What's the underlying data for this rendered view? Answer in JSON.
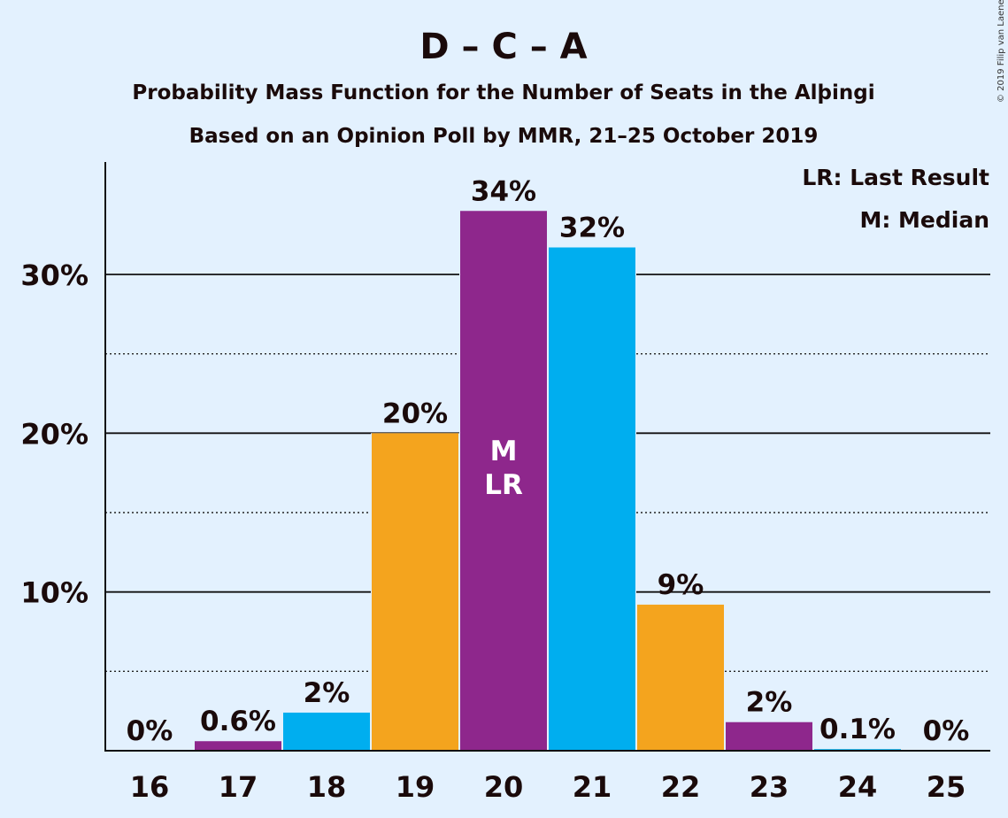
{
  "chart_data": {
    "type": "bar",
    "title": "D – C – A",
    "subtitle_lines": [
      "Probability Mass Function for the Number of Seats in the Alþingi",
      "Based on an Opinion Poll by MMR, 21–25 October 2019"
    ],
    "copyright": "© 2019 Filip van Laenen",
    "legend": [
      "LR: Last Result",
      "M: Median"
    ],
    "legend_placement": "top-right",
    "categories": [
      "16",
      "17",
      "18",
      "19",
      "20",
      "21",
      "22",
      "23",
      "24",
      "25"
    ],
    "values": [
      0,
      0.6,
      2.4,
      20.0,
      34.0,
      31.7,
      9.2,
      1.8,
      0.1,
      0
    ],
    "value_labels": [
      "0%",
      "0.6%",
      "2%",
      "20%",
      "34%",
      "32%",
      "9%",
      "2%",
      "0.1%",
      "0%"
    ],
    "bar_colors": [
      "#8e278c",
      "#8e278c",
      "#00aeef",
      "#f4a41e",
      "#8e278c",
      "#00aeef",
      "#f4a41e",
      "#8e278c",
      "#00aeef",
      "#f4a41e"
    ],
    "annotations": [
      {
        "category": "20",
        "lines": [
          "M",
          "LR"
        ]
      }
    ],
    "y_ticks": [
      10,
      20,
      30
    ],
    "y_tick_labels": [
      "10%",
      "20%",
      "30%"
    ],
    "y_minor_ticks": [
      5,
      15,
      25
    ],
    "ylim": [
      0,
      37
    ],
    "grid": true
  }
}
